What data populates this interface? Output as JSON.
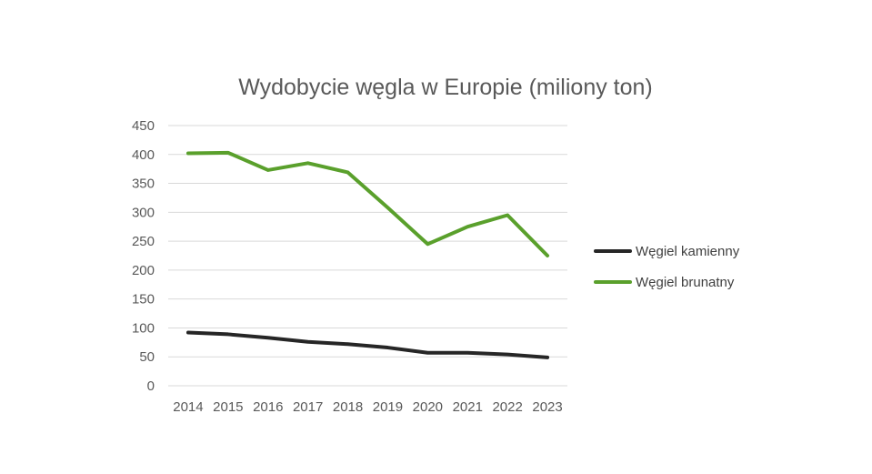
{
  "chart_data": {
    "type": "line",
    "title": "Wydobycie węgla w Europie (miliony ton)",
    "xlabel": "",
    "ylabel": "",
    "categories": [
      "2014",
      "2015",
      "2016",
      "2017",
      "2018",
      "2019",
      "2020",
      "2021",
      "2022",
      "2023"
    ],
    "ylim": [
      0,
      450
    ],
    "yticks": [
      0,
      50,
      100,
      150,
      200,
      250,
      300,
      350,
      400,
      450
    ],
    "grid": true,
    "legend_position": "right",
    "series": [
      {
        "name": "Węgiel kamienny",
        "color": "#262626",
        "values": [
          92,
          89,
          83,
          76,
          72,
          66,
          57,
          57,
          54,
          49
        ]
      },
      {
        "name": "Węgiel brunatny",
        "color": "#5AA02C",
        "values": [
          402,
          403,
          373,
          385,
          369,
          308,
          245,
          275,
          295,
          225
        ]
      }
    ]
  }
}
